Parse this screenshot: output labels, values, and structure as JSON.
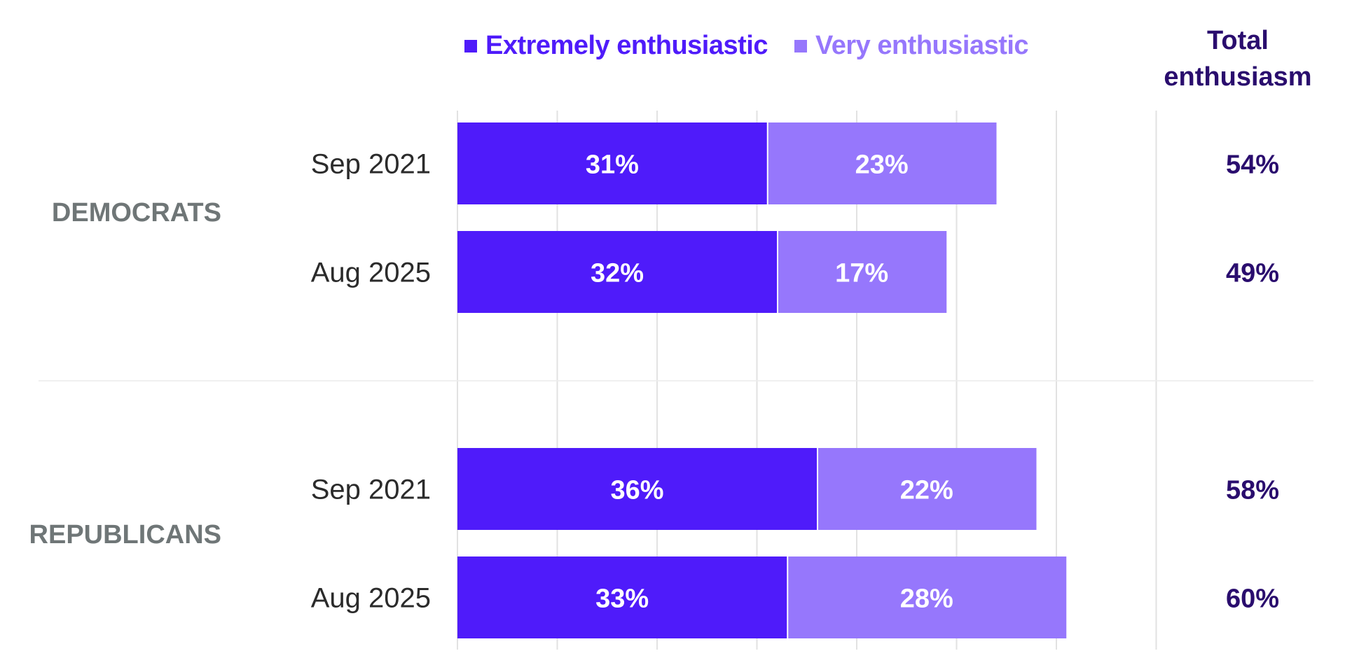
{
  "colors": {
    "extremely": "#4f1bfa",
    "very": "#9677fc",
    "total_text": "#2a0d6e",
    "group_text": "#6f7677",
    "row_text": "#2b2b2b",
    "grid": "#e2e2e2"
  },
  "legend": {
    "extremely_label": "Extremely enthusiastic",
    "very_label": "Very enthusiastic"
  },
  "total_header": {
    "line1": "Total",
    "line2": "enthusiasm"
  },
  "chart_data": {
    "type": "bar",
    "orientation": "horizontal",
    "stacked": true,
    "value_format": "percent",
    "xlim": [
      0,
      70
    ],
    "grid": true,
    "legend_position": "top",
    "groups": [
      {
        "name": "DEMOCRATS",
        "rows": [
          {
            "label": "Sep 2021",
            "extremely": 31,
            "very": 23,
            "total": 54
          },
          {
            "label": "Aug 2025",
            "extremely": 32,
            "very": 17,
            "total": 49
          }
        ]
      },
      {
        "name": "REPUBLICANS",
        "rows": [
          {
            "label": "Sep 2021",
            "extremely": 36,
            "very": 22,
            "total": 58
          },
          {
            "label": "Aug 2025",
            "extremely": 33,
            "very": 28,
            "total": 60
          }
        ]
      }
    ],
    "series": [
      {
        "name": "Extremely enthusiastic",
        "key": "extremely"
      },
      {
        "name": "Very enthusiastic",
        "key": "very"
      }
    ]
  }
}
